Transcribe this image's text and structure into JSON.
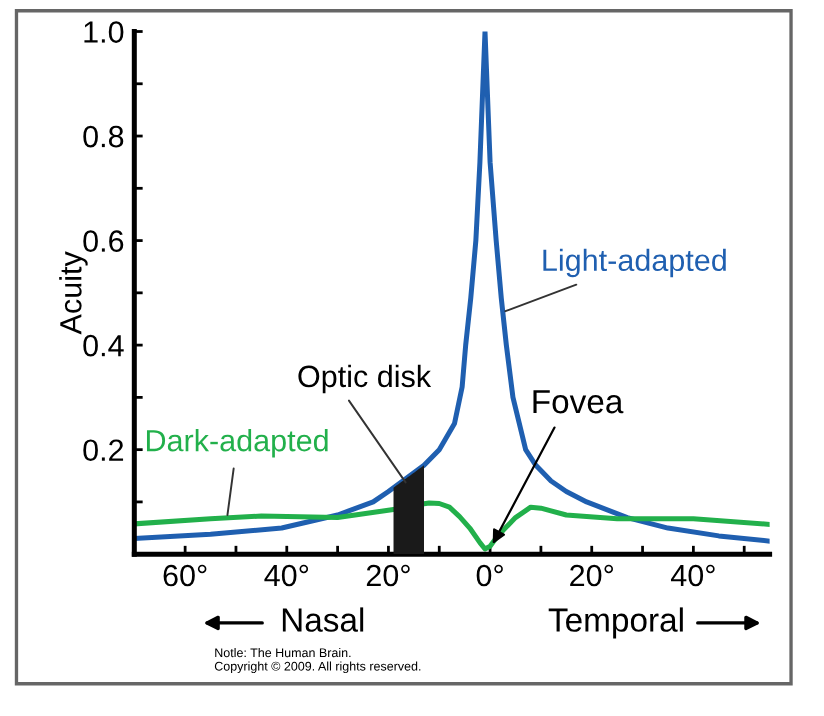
{
  "chart_data": {
    "type": "line",
    "ylabel": "Acuity",
    "ylim": [
      0,
      1.0
    ],
    "xlim": [
      -70,
      55
    ],
    "yticks": [
      {
        "value": 0.1,
        "label": null
      },
      0.2,
      {
        "value": 0.3,
        "label": null
      },
      0.4,
      {
        "value": 0.5,
        "label": null
      },
      0.6,
      {
        "value": 0.7,
        "label": null
      },
      0.8,
      {
        "value": 0.9,
        "label": null
      },
      {
        "value": 1.0,
        "label": "1.0"
      }
    ],
    "xticks": [
      {
        "value": -60,
        "label": "60°"
      },
      {
        "value": -50,
        "label": null
      },
      {
        "value": -40,
        "label": "40°"
      },
      {
        "value": -30,
        "label": null
      },
      {
        "value": -20,
        "label": "20°"
      },
      {
        "value": -10,
        "label": null
      },
      {
        "value": 0,
        "label": "0°"
      },
      {
        "value": 10,
        "label": null
      },
      {
        "value": 20,
        "label": "20°"
      },
      {
        "value": 30,
        "label": null
      },
      {
        "value": 40,
        "label": "40°"
      },
      {
        "value": 50,
        "label": null
      }
    ],
    "series": [
      {
        "name": "Light-adapted",
        "color": "#1f5fb0",
        "x": [
          -70,
          -55,
          -41,
          -30,
          -23,
          -20,
          -13,
          -10,
          -7,
          -5.5,
          -4.8,
          -3.8,
          -2.8,
          -2,
          -1,
          0,
          1.2,
          2.2,
          3.2,
          4.5,
          7,
          9,
          12,
          15,
          19,
          27,
          35,
          45,
          55
        ],
        "values": [
          0.03,
          0.038,
          0.05,
          0.075,
          0.1,
          0.12,
          0.17,
          0.2,
          0.25,
          0.32,
          0.4,
          0.49,
          0.6,
          0.75,
          1.0,
          0.75,
          0.6,
          0.49,
          0.4,
          0.3,
          0.2,
          0.17,
          0.14,
          0.12,
          0.1,
          0.07,
          0.05,
          0.035,
          0.025
        ]
      },
      {
        "name": "Dark-adapted",
        "color": "#22b04b",
        "x": [
          -70,
          -55,
          -45,
          -30,
          -18,
          -14,
          -12,
          -10,
          -8,
          -6,
          -4,
          -2,
          -1,
          0,
          1.5,
          3,
          5,
          8,
          10,
          15,
          25,
          40,
          55
        ],
        "values": [
          0.058,
          0.068,
          0.073,
          0.07,
          0.087,
          0.095,
          0.098,
          0.097,
          0.09,
          0.072,
          0.05,
          0.022,
          0.01,
          0.015,
          0.035,
          0.05,
          0.07,
          0.09,
          0.088,
          0.075,
          0.068,
          0.068,
          0.057
        ]
      }
    ],
    "bands": [
      {
        "axis": "x",
        "from": -19,
        "to": -13,
        "color": "#1a1a1a",
        "label": "Optic disk"
      }
    ],
    "annotations": [
      {
        "text": "Fovea",
        "x": 0,
        "y": 0.01
      },
      "Nasal",
      "Temporal",
      "Notle: The Human Brain.\nCopyright © 2009. All rights reserved."
    ],
    "grid": false
  }
}
